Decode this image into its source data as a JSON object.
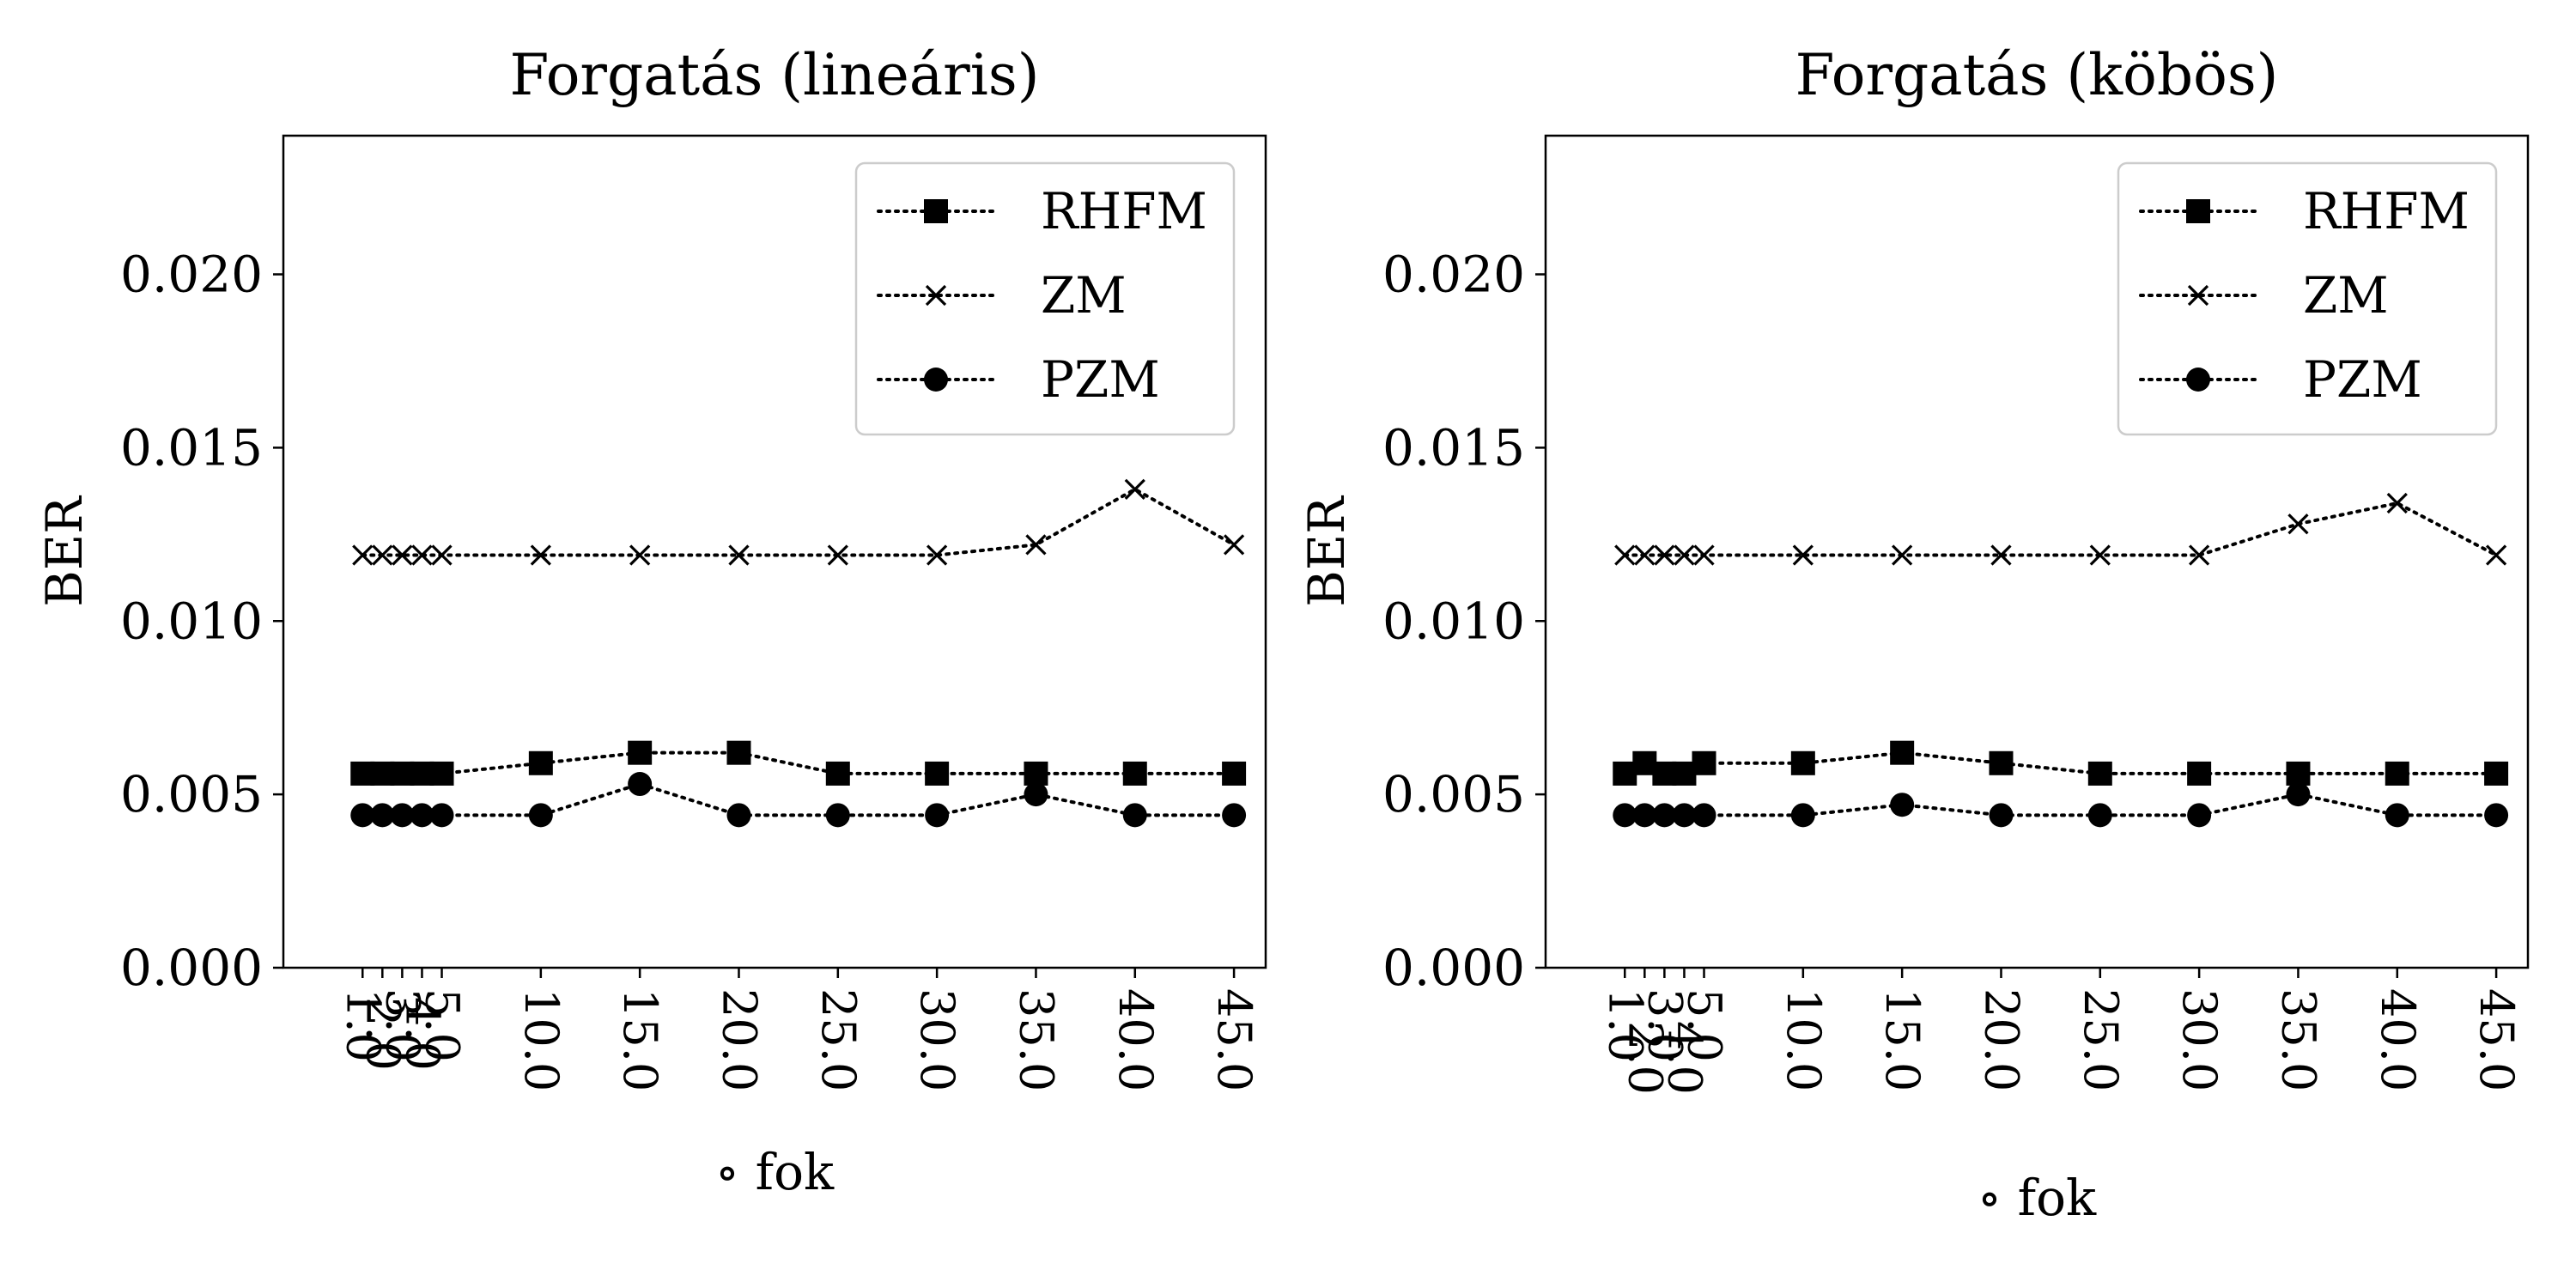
{
  "chart_data": [
    {
      "type": "line",
      "title": "Forgatás (lineáris)",
      "xlabel": "∘ fok",
      "ylabel": "BER",
      "ylim": [
        0,
        0.024
      ],
      "yticks": [
        0,
        0.005,
        0.01,
        0.015,
        0.02
      ],
      "ytick_labels": [
        "0.000",
        "0.005",
        "0.010",
        "0.015",
        "0.020"
      ],
      "x": [
        1,
        2,
        3,
        4,
        5,
        10,
        15,
        20,
        25,
        30,
        35,
        40,
        45
      ],
      "xtick_labels": [
        "1.0",
        "2.0",
        "3.0",
        "4.0",
        "5.0",
        "10.0",
        "15.0",
        "20.0",
        "25.0",
        "30.0",
        "35.0",
        "40.0",
        "45.0"
      ],
      "grid": false,
      "legend_position": "top-right",
      "series": [
        {
          "name": "RHFM",
          "marker": "square",
          "values": [
            0.0056,
            0.0056,
            0.0056,
            0.0056,
            0.0056,
            0.0059,
            0.0062,
            0.0062,
            0.0056,
            0.0056,
            0.0056,
            0.0056,
            0.0056
          ]
        },
        {
          "name": "ZM",
          "marker": "x",
          "values": [
            0.0119,
            0.0119,
            0.0119,
            0.0119,
            0.0119,
            0.0119,
            0.0119,
            0.0119,
            0.0119,
            0.0119,
            0.0122,
            0.0138,
            0.0122
          ]
        },
        {
          "name": "PZM",
          "marker": "circle",
          "values": [
            0.0044,
            0.0044,
            0.0044,
            0.0044,
            0.0044,
            0.0044,
            0.0053,
            0.0044,
            0.0044,
            0.0044,
            0.005,
            0.0044,
            0.0044
          ]
        }
      ]
    },
    {
      "type": "line",
      "title": "Forgatás (köbös)",
      "xlabel": "∘ fok",
      "ylabel": "BER",
      "ylim": [
        0,
        0.024
      ],
      "yticks": [
        0,
        0.005,
        0.01,
        0.015,
        0.02
      ],
      "ytick_labels": [
        "0.000",
        "0.005",
        "0.010",
        "0.015",
        "0.020"
      ],
      "x": [
        1,
        2,
        3,
        4,
        5,
        10,
        15,
        20,
        25,
        30,
        35,
        40,
        45
      ],
      "xtick_labels": [
        "1.0",
        "2.0",
        "3.0",
        "4.0",
        "5.0",
        "10.0",
        "15.0",
        "20.0",
        "25.0",
        "30.0",
        "35.0",
        "40.0",
        "45.0"
      ],
      "grid": false,
      "legend_position": "top-right",
      "series": [
        {
          "name": "RHFM",
          "marker": "square",
          "values": [
            0.0056,
            0.0059,
            0.0056,
            0.0056,
            0.0059,
            0.0059,
            0.0062,
            0.0059,
            0.0056,
            0.0056,
            0.0056,
            0.0056,
            0.0056
          ]
        },
        {
          "name": "ZM",
          "marker": "x",
          "values": [
            0.0119,
            0.0119,
            0.0119,
            0.0119,
            0.0119,
            0.0119,
            0.0119,
            0.0119,
            0.0119,
            0.0119,
            0.0128,
            0.0134,
            0.0119
          ]
        },
        {
          "name": "PZM",
          "marker": "circle",
          "values": [
            0.0044,
            0.0044,
            0.0044,
            0.0044,
            0.0044,
            0.0044,
            0.0047,
            0.0044,
            0.0044,
            0.0044,
            0.005,
            0.0044,
            0.0044
          ]
        }
      ]
    }
  ]
}
